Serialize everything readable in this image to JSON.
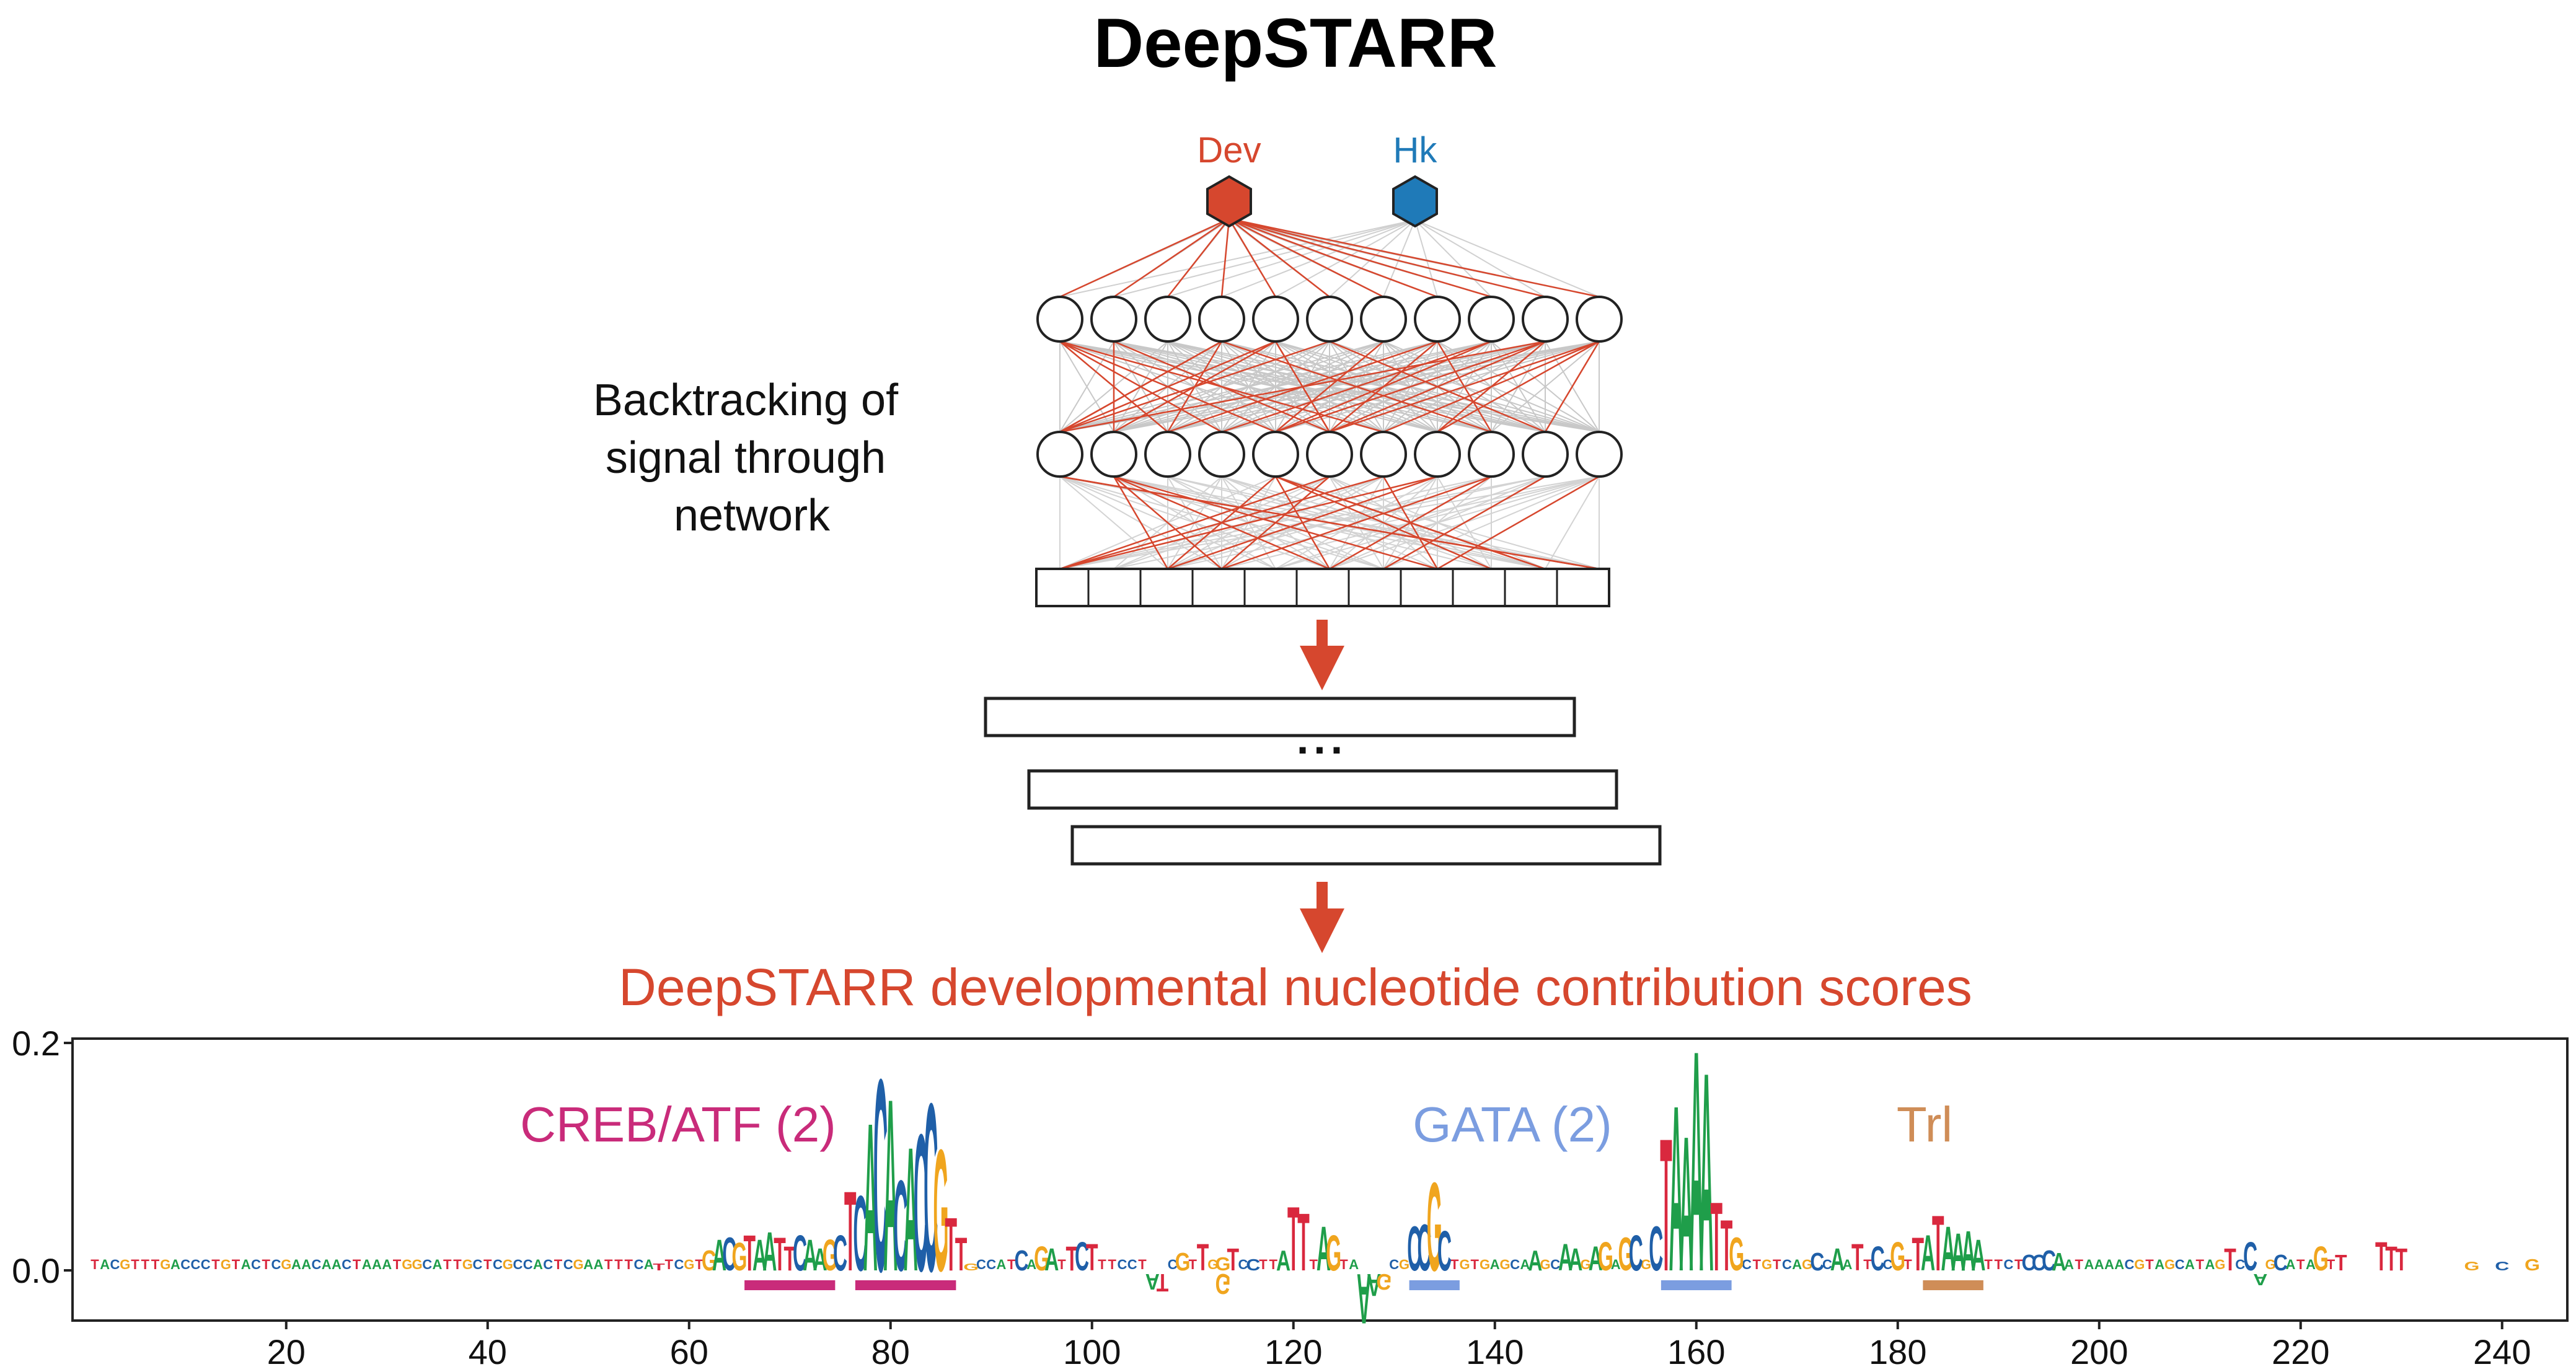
{
  "title": "DeepSTARR",
  "outputs": [
    {
      "name": "Dev",
      "color": "#d6472e"
    },
    {
      "name": "Hk",
      "color": "#1f7ab8"
    }
  ],
  "side_label": [
    "Backtracking of",
    "signal through",
    "network"
  ],
  "ellipsis": "...",
  "scores_title": "DeepSTARR developmental nucleotide contribution scores",
  "colors": {
    "accent": "#d6472e",
    "creb": "#c92b7a",
    "gata": "#7b9de0",
    "trl": "#cf8d57",
    "A": "#1f9e4a",
    "C": "#1f5fa8",
    "G": "#f0a51e",
    "T": "#d9283e"
  },
  "chart_data": {
    "type": "sequence-logo",
    "y_ticks": [
      "0.0",
      "0.2"
    ],
    "ylim": [
      -0.045,
      0.205
    ],
    "xlim": [
      1,
      249
    ],
    "x_ticks": [
      "20",
      "40",
      "60",
      "80",
      "100",
      "120",
      "140",
      "160",
      "180",
      "200",
      "220",
      "240"
    ],
    "sequence": "TACGTTTGACCCTGTACTCGAACAACTAAATGGCATTGCTCGCCACTCGAATTTCATTCGTGACGTAATTCAAGCTCACACACCGTTGCCATCAGATTCTTTCCTATCGTTGGTCCTTATTTAGTAAAGCGCCGCTGTGAGCAAGCAAGAGAGCGCTAAAATTGCTGTCAGCCAATTCCGTTATAAAATTCTCCCAATAAAACGTAGCATAGTCCAGCATAGT",
    "annotations": [
      {
        "label": "CREB/ATF (2)",
        "color_key": "creb",
        "ranges": [
          [
            65.5,
            74.5
          ],
          [
            76.5,
            86.5
          ]
        ]
      },
      {
        "label": "GATA (2)",
        "color_key": "gata",
        "ranges": [
          [
            131.5,
            136.5
          ],
          [
            156.5,
            163.5
          ]
        ]
      },
      {
        "label": "Trl",
        "color_key": "trl",
        "ranges": [
          [
            182.5,
            188.5
          ]
        ]
      }
    ],
    "peaks": [
      {
        "pos": 57,
        "value": 0.006
      },
      {
        "pos": 62,
        "value": 0.018
      },
      {
        "pos": 63,
        "value": 0.028
      },
      {
        "pos": 64,
        "value": 0.03
      },
      {
        "pos": 65,
        "value": 0.025
      },
      {
        "pos": 66,
        "value": 0.032
      },
      {
        "pos": 67,
        "value": 0.028
      },
      {
        "pos": 68,
        "value": 0.035
      },
      {
        "pos": 69,
        "value": 0.03
      },
      {
        "pos": 70,
        "value": 0.022
      },
      {
        "pos": 71,
        "value": 0.032
      },
      {
        "pos": 72,
        "value": 0.028
      },
      {
        "pos": 73,
        "value": 0.02
      },
      {
        "pos": 74,
        "value": 0.028
      },
      {
        "pos": 75,
        "value": 0.032
      },
      {
        "pos": 76,
        "value": 0.072
      },
      {
        "pos": 77,
        "value": 0.068
      },
      {
        "pos": 78,
        "value": 0.134
      },
      {
        "pos": 79,
        "value": 0.174
      },
      {
        "pos": 80,
        "value": 0.156
      },
      {
        "pos": 81,
        "value": 0.082
      },
      {
        "pos": 82,
        "value": 0.112
      },
      {
        "pos": 83,
        "value": 0.124
      },
      {
        "pos": 84,
        "value": 0.152
      },
      {
        "pos": 85,
        "value": 0.11
      },
      {
        "pos": 86,
        "value": 0.048
      },
      {
        "pos": 87,
        "value": 0.03
      },
      {
        "pos": 88,
        "value": 0.006
      },
      {
        "pos": 93,
        "value": 0.018
      },
      {
        "pos": 95,
        "value": 0.022
      },
      {
        "pos": 96,
        "value": 0.02
      },
      {
        "pos": 98,
        "value": 0.022
      },
      {
        "pos": 99,
        "value": 0.026
      },
      {
        "pos": 100,
        "value": 0.024
      },
      {
        "pos": 109,
        "value": 0.016
      },
      {
        "pos": 111,
        "value": 0.024
      },
      {
        "pos": 113,
        "value": 0.012
      },
      {
        "pos": 114,
        "value": 0.02
      },
      {
        "pos": 116,
        "value": 0.01
      },
      {
        "pos": 119,
        "value": 0.018
      },
      {
        "pos": 120,
        "value": 0.058
      },
      {
        "pos": 121,
        "value": 0.052
      },
      {
        "pos": 123,
        "value": 0.04
      },
      {
        "pos": 124,
        "value": 0.032
      },
      {
        "pos": 132,
        "value": 0.04
      },
      {
        "pos": 133,
        "value": 0.042
      },
      {
        "pos": 134,
        "value": 0.08
      },
      {
        "pos": 135,
        "value": 0.036
      },
      {
        "pos": 144,
        "value": 0.018
      },
      {
        "pos": 147,
        "value": 0.024
      },
      {
        "pos": 148,
        "value": 0.02
      },
      {
        "pos": 150,
        "value": 0.022
      },
      {
        "pos": 151,
        "value": 0.026
      },
      {
        "pos": 153,
        "value": 0.03
      },
      {
        "pos": 154,
        "value": 0.032
      },
      {
        "pos": 156,
        "value": 0.04
      },
      {
        "pos": 157,
        "value": 0.12
      },
      {
        "pos": 158,
        "value": 0.15
      },
      {
        "pos": 159,
        "value": 0.122
      },
      {
        "pos": 160,
        "value": 0.2
      },
      {
        "pos": 161,
        "value": 0.18
      },
      {
        "pos": 162,
        "value": 0.062
      },
      {
        "pos": 163,
        "value": 0.046
      },
      {
        "pos": 164,
        "value": 0.03
      },
      {
        "pos": 172,
        "value": 0.016
      },
      {
        "pos": 174,
        "value": 0.02
      },
      {
        "pos": 176,
        "value": 0.024
      },
      {
        "pos": 178,
        "value": 0.022
      },
      {
        "pos": 180,
        "value": 0.026
      },
      {
        "pos": 182,
        "value": 0.03
      },
      {
        "pos": 183,
        "value": 0.032
      },
      {
        "pos": 184,
        "value": 0.05
      },
      {
        "pos": 185,
        "value": 0.04
      },
      {
        "pos": 186,
        "value": 0.034
      },
      {
        "pos": 187,
        "value": 0.036
      },
      {
        "pos": 188,
        "value": 0.028
      },
      {
        "pos": 193,
        "value": 0.014
      },
      {
        "pos": 194,
        "value": 0.014
      },
      {
        "pos": 195,
        "value": 0.018
      },
      {
        "pos": 196,
        "value": 0.016
      },
      {
        "pos": 213,
        "value": 0.02
      },
      {
        "pos": 215,
        "value": 0.026
      },
      {
        "pos": 218,
        "value": 0.014
      },
      {
        "pos": 222,
        "value": 0.022
      },
      {
        "pos": 224,
        "value": 0.014
      },
      {
        "pos": 228,
        "value": 0.026
      },
      {
        "pos": 229,
        "value": 0.022
      },
      {
        "pos": 230,
        "value": 0.02
      },
      {
        "pos": 237,
        "value": 0.008
      },
      {
        "pos": 240,
        "value": 0.008
      },
      {
        "pos": 243,
        "value": 0.01
      },
      {
        "pos": 106,
        "value": -0.014
      },
      {
        "pos": 107,
        "value": -0.016
      },
      {
        "pos": 113,
        "value": -0.018
      },
      {
        "pos": 127,
        "value": -0.045
      },
      {
        "pos": 128,
        "value": -0.02
      },
      {
        "pos": 129,
        "value": -0.014
      },
      {
        "pos": 216,
        "value": -0.01
      }
    ]
  }
}
